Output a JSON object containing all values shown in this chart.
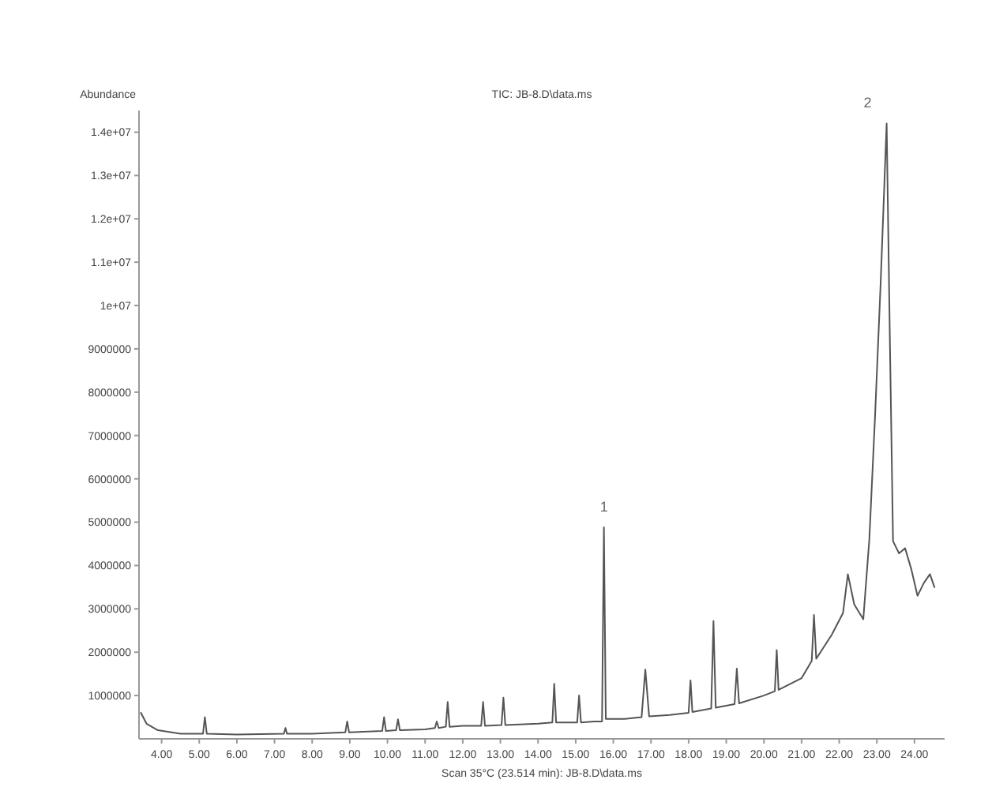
{
  "chart_data": {
    "type": "line",
    "title": "TIC: JB-8.D\\data.ms",
    "xlabel": "Scan 35°C (23.514 min): JB-8.D\\data.ms",
    "ylabel": "Abundance",
    "xlim": [
      3.4,
      24.8
    ],
    "xticks": [
      {
        "value": 4,
        "label": "4.00"
      },
      {
        "value": 5,
        "label": "5.00"
      },
      {
        "value": 6,
        "label": "6.00"
      },
      {
        "value": 7,
        "label": "7.00"
      },
      {
        "value": 8,
        "label": "8.00"
      },
      {
        "value": 9,
        "label": "9.00"
      },
      {
        "value": 10,
        "label": "10.00"
      },
      {
        "value": 11,
        "label": "11.00"
      },
      {
        "value": 12,
        "label": "12.00"
      },
      {
        "value": 13,
        "label": "13.00"
      },
      {
        "value": 14,
        "label": "14.00"
      },
      {
        "value": 15,
        "label": "15.00"
      },
      {
        "value": 16,
        "label": "16.00"
      },
      {
        "value": 17,
        "label": "17.00"
      },
      {
        "value": 18,
        "label": "18.00"
      },
      {
        "value": 19,
        "label": "19.00"
      },
      {
        "value": 20,
        "label": "20.00"
      },
      {
        "value": 21,
        "label": "21.00"
      },
      {
        "value": 22,
        "label": "22.00"
      },
      {
        "value": 23,
        "label": "23.00"
      },
      {
        "value": 24,
        "label": "24.00"
      }
    ],
    "ylim": [
      0,
      14500000
    ],
    "yticks": [
      1000000,
      2000000,
      3000000,
      4000000,
      5000000,
      6000000,
      7000000,
      8000000,
      9000000,
      {
        "value": 10000000,
        "label": "1e+07"
      },
      {
        "value": 11000000,
        "label": "1.1e+07"
      },
      {
        "value": 12000000,
        "label": "1.2e+07"
      },
      {
        "value": 13000000,
        "label": "1.3e+07"
      },
      {
        "value": 14000000,
        "label": "1.4e+07"
      }
    ],
    "grid": false,
    "marker": "none",
    "line_style": "solid",
    "series": [
      {
        "color": "#555555",
        "x": [
          3.45,
          3.6,
          3.9,
          4.5,
          5.1,
          5.15,
          5.2,
          6.0,
          7.25,
          7.29,
          7.33,
          8.0,
          8.88,
          8.93,
          8.98,
          9.86,
          9.91,
          9.96,
          10.23,
          10.28,
          10.33,
          11.0,
          11.26,
          11.31,
          11.36,
          11.55,
          11.6,
          11.65,
          12.0,
          12.49,
          12.54,
          12.59,
          13.03,
          13.08,
          13.13,
          14.0,
          14.38,
          14.43,
          14.48,
          15.04,
          15.09,
          15.14,
          15.5,
          15.7,
          15.75,
          15.8,
          16.3,
          16.75,
          16.85,
          16.95,
          17.5,
          18.0,
          18.05,
          18.1,
          18.6,
          18.66,
          18.72,
          19.22,
          19.28,
          19.34,
          20.0,
          20.29,
          20.34,
          20.39,
          21.0,
          21.27,
          21.33,
          21.39,
          21.8,
          22.1,
          22.23,
          22.4,
          22.64,
          22.8,
          22.95,
          23.1,
          23.26,
          23.35,
          23.43,
          23.59,
          23.75,
          23.92,
          24.08,
          24.25,
          24.41,
          24.53
        ],
        "values": [
          600000,
          350000,
          200000,
          120000,
          120000,
          500000,
          120000,
          100000,
          120000,
          250000,
          120000,
          120000,
          150000,
          400000,
          150000,
          180000,
          500000,
          180000,
          200000,
          450000,
          200000,
          220000,
          250000,
          400000,
          250000,
          280000,
          850000,
          280000,
          300000,
          300000,
          850000,
          300000,
          320000,
          950000,
          320000,
          350000,
          380000,
          1270000,
          380000,
          380000,
          1000000,
          380000,
          400000,
          400000,
          4880000,
          460000,
          460000,
          500000,
          1600000,
          520000,
          550000,
          600000,
          1350000,
          620000,
          700000,
          2720000,
          720000,
          800000,
          1620000,
          820000,
          1000000,
          1100000,
          2050000,
          1130000,
          1400000,
          1800000,
          2860000,
          1850000,
          2400000,
          2900000,
          3800000,
          3100000,
          2760000,
          4600000,
          7400000,
          10500000,
          14200000,
          9000000,
          4560000,
          4280000,
          4400000,
          3900000,
          3300000,
          3600000,
          3800000,
          3500000
        ]
      }
    ],
    "annotations": [
      {
        "text": "1",
        "x": 15.75,
        "y": 4880000
      },
      {
        "text": "2",
        "x": 23.26,
        "y": 14200000
      }
    ]
  }
}
